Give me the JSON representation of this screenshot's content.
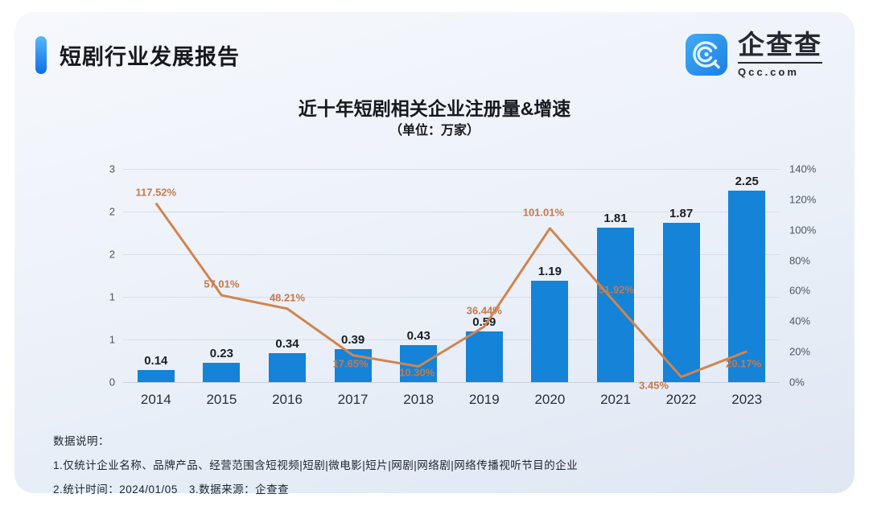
{
  "header": {
    "report_title": "短剧行业发展报告",
    "logo_text": "企查查",
    "logo_domain": "Qcc.com",
    "accent_color": "#1b7ff0",
    "logo_blue": "#2d9ceb"
  },
  "chart_data": {
    "type": "bar",
    "title": "近十年短剧相关企业注册量&增速",
    "subtitle": "（单位：万家）",
    "categories": [
      "2014",
      "2015",
      "2016",
      "2017",
      "2018",
      "2019",
      "2020",
      "2021",
      "2022",
      "2023"
    ],
    "series": [
      {
        "name": "注册量",
        "type": "bar",
        "unit": "万家",
        "color": "#1483d8",
        "values": [
          0.14,
          0.23,
          0.34,
          0.39,
          0.43,
          0.59,
          1.19,
          1.81,
          1.87,
          2.25
        ]
      },
      {
        "name": "增速",
        "type": "line",
        "color": "#d0854e",
        "values": [
          117.52,
          57.01,
          48.21,
          17.65,
          10.3,
          36.44,
          101.01,
          51.92,
          3.45,
          20.17
        ],
        "labels": [
          "117.52%",
          "57.01%",
          "48.21%",
          "17.65%",
          "10.30%",
          "36.44%",
          "101.01%",
          "51.92%",
          "3.45%",
          "20.17%"
        ],
        "label_offsets": [
          [
            0,
            -14
          ],
          [
            0,
            -14
          ],
          [
            0,
            -14
          ],
          [
            -3,
            10
          ],
          [
            -2,
            7
          ],
          [
            0,
            -20
          ],
          [
            -8,
            -20
          ],
          [
            1,
            -17
          ],
          [
            -34,
            11
          ],
          [
            -4,
            15
          ]
        ]
      }
    ],
    "left_axis": {
      "tick_labels": [
        "0",
        "1",
        "1",
        "2",
        "2",
        "3"
      ],
      "min": 0,
      "max": 2.5
    },
    "right_axis": {
      "tick_labels": [
        "0%",
        "20%",
        "40%",
        "60%",
        "80%",
        "100%",
        "120%",
        "140%"
      ],
      "min": 0,
      "max": 140
    },
    "grid": true,
    "legend": "none"
  },
  "notes": {
    "lines": [
      "数据说明：",
      "1.仅统计企业名称、品牌产品、经营范围含短视频|短剧|微电影|短片|网剧|网络剧|网络传播视听节目的企业",
      "2.统计时间：2024/01/05　3.数据来源：企查查"
    ]
  }
}
